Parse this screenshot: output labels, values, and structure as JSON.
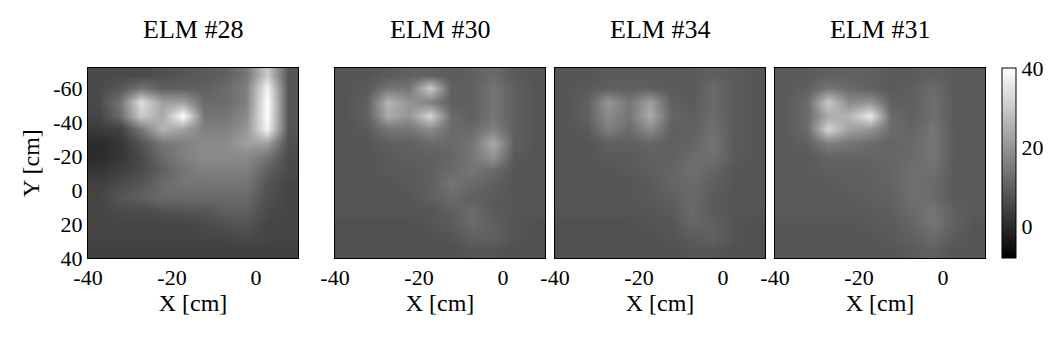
{
  "chart_data": [
    {
      "type": "heatmap",
      "title": "ELM #28",
      "xlabel": "X [cm]",
      "ylabel": "Y [cm]",
      "x": [
        -37.5,
        -32.5,
        -27.5,
        -22.5,
        -17.5,
        -12.5,
        -7.5,
        -2.5,
        2.5,
        7.5
      ],
      "y": [
        -68,
        -60,
        -52,
        -44,
        -36,
        -28,
        -20,
        -12,
        -4,
        4,
        12,
        20,
        28,
        36
      ],
      "z": [
        [
          6,
          6,
          6,
          7,
          8,
          9,
          10,
          14,
          30,
          8
        ],
        [
          6,
          8,
          14,
          10,
          10,
          10,
          12,
          16,
          38,
          8
        ],
        [
          6,
          14,
          34,
          22,
          22,
          12,
          12,
          16,
          40,
          8
        ],
        [
          5,
          12,
          30,
          24,
          40,
          14,
          14,
          18,
          40,
          8
        ],
        [
          3,
          4,
          14,
          26,
          22,
          16,
          16,
          20,
          38,
          8
        ],
        [
          0,
          2,
          8,
          14,
          16,
          18,
          18,
          22,
          22,
          7
        ],
        [
          0,
          2,
          6,
          12,
          16,
          18,
          18,
          18,
          14,
          6
        ],
        [
          2,
          4,
          6,
          10,
          14,
          16,
          16,
          16,
          10,
          6
        ],
        [
          4,
          6,
          8,
          12,
          14,
          14,
          14,
          14,
          8,
          5
        ],
        [
          5,
          8,
          10,
          12,
          12,
          12,
          12,
          12,
          7,
          5
        ],
        [
          5,
          6,
          6,
          7,
          8,
          8,
          10,
          10,
          6,
          5
        ],
        [
          5,
          5,
          5,
          5,
          5,
          6,
          7,
          8,
          5,
          5
        ],
        [
          5,
          5,
          5,
          5,
          5,
          5,
          5,
          6,
          5,
          5
        ],
        [
          4,
          4,
          4,
          4,
          4,
          4,
          4,
          4,
          4,
          4
        ]
      ],
      "xlim": [
        -40,
        10
      ],
      "ylim": [
        40,
        -72
      ],
      "xticks": [
        -40,
        -20,
        0
      ],
      "yticks": [
        -60,
        -40,
        -20,
        0,
        20,
        40
      ]
    },
    {
      "type": "heatmap",
      "title": "ELM #30",
      "xlabel": "X [cm]",
      "tick_labels": "x",
      "x": [
        -37.5,
        -32.5,
        -27.5,
        -22.5,
        -17.5,
        -12.5,
        -7.5,
        -2.5,
        2.5,
        7.5
      ],
      "y": [
        -68,
        -60,
        -52,
        -44,
        -36,
        -28,
        -20,
        -12,
        -4,
        4,
        12,
        20,
        28,
        36
      ],
      "z": [
        [
          8,
          8,
          9,
          10,
          10,
          9,
          10,
          12,
          9,
          8
        ],
        [
          8,
          9,
          14,
          14,
          30,
          10,
          10,
          14,
          10,
          8
        ],
        [
          8,
          10,
          26,
          20,
          16,
          10,
          10,
          14,
          10,
          8
        ],
        [
          8,
          10,
          24,
          20,
          32,
          12,
          10,
          14,
          10,
          8
        ],
        [
          8,
          9,
          14,
          14,
          18,
          12,
          12,
          16,
          10,
          8
        ],
        [
          8,
          8,
          10,
          10,
          12,
          12,
          14,
          24,
          10,
          8
        ],
        [
          8,
          8,
          9,
          10,
          10,
          11,
          14,
          20,
          9,
          8
        ],
        [
          8,
          8,
          9,
          9,
          10,
          12,
          14,
          12,
          8,
          8
        ],
        [
          8,
          8,
          8,
          9,
          10,
          14,
          12,
          10,
          8,
          8
        ],
        [
          8,
          8,
          8,
          8,
          10,
          12,
          10,
          9,
          8,
          8
        ],
        [
          8,
          8,
          8,
          8,
          8,
          10,
          12,
          9,
          8,
          8
        ],
        [
          7,
          7,
          7,
          7,
          8,
          9,
          12,
          10,
          8,
          7
        ],
        [
          7,
          7,
          7,
          7,
          7,
          8,
          10,
          10,
          8,
          7
        ],
        [
          7,
          7,
          7,
          7,
          7,
          7,
          8,
          8,
          7,
          7
        ]
      ],
      "xlim": [
        -40,
        10
      ],
      "ylim": [
        40,
        -72
      ],
      "xticks": [
        -40,
        -20,
        0
      ]
    },
    {
      "type": "heatmap",
      "title": "ELM #34",
      "xlabel": "X [cm]",
      "tick_labels": "x",
      "x": [
        -37.5,
        -32.5,
        -27.5,
        -22.5,
        -17.5,
        -12.5,
        -7.5,
        -2.5,
        2.5,
        7.5
      ],
      "y": [
        -68,
        -60,
        -52,
        -44,
        -36,
        -28,
        -20,
        -12,
        -4,
        4,
        12,
        20,
        28,
        36
      ],
      "z": [
        [
          8,
          8,
          9,
          9,
          9,
          9,
          9,
          10,
          9,
          8
        ],
        [
          8,
          9,
          10,
          10,
          10,
          9,
          9,
          12,
          9,
          8
        ],
        [
          8,
          10,
          20,
          14,
          22,
          10,
          9,
          12,
          9,
          8
        ],
        [
          8,
          10,
          18,
          14,
          24,
          11,
          10,
          12,
          9,
          8
        ],
        [
          8,
          9,
          16,
          12,
          18,
          10,
          10,
          13,
          9,
          8
        ],
        [
          8,
          8,
          10,
          10,
          11,
          10,
          11,
          14,
          9,
          8
        ],
        [
          8,
          8,
          9,
          9,
          10,
          10,
          12,
          13,
          9,
          8
        ],
        [
          8,
          8,
          8,
          9,
          10,
          11,
          13,
          11,
          8,
          8
        ],
        [
          8,
          8,
          8,
          8,
          9,
          11,
          12,
          10,
          8,
          8
        ],
        [
          8,
          8,
          8,
          8,
          9,
          10,
          12,
          9,
          8,
          8
        ],
        [
          8,
          8,
          8,
          8,
          8,
          9,
          12,
          9,
          8,
          8
        ],
        [
          7,
          7,
          7,
          7,
          8,
          8,
          11,
          10,
          8,
          7
        ],
        [
          7,
          7,
          7,
          7,
          7,
          8,
          9,
          10,
          8,
          7
        ],
        [
          7,
          7,
          7,
          7,
          7,
          7,
          8,
          8,
          7,
          7
        ]
      ],
      "xlim": [
        -40,
        10
      ],
      "ylim": [
        40,
        -72
      ],
      "xticks": [
        -40,
        -20,
        0
      ]
    },
    {
      "type": "heatmap",
      "title": "ELM #31",
      "xlabel": "X [cm]",
      "tick_labels": "x",
      "x": [
        -37.5,
        -32.5,
        -27.5,
        -22.5,
        -17.5,
        -12.5,
        -7.5,
        -2.5,
        2.5,
        7.5
      ],
      "y": [
        -68,
        -60,
        -52,
        -44,
        -36,
        -28,
        -20,
        -12,
        -4,
        4,
        12,
        20,
        28,
        36
      ],
      "z": [
        [
          9,
          9,
          10,
          10,
          10,
          9,
          9,
          10,
          9,
          9
        ],
        [
          9,
          10,
          14,
          12,
          10,
          9,
          10,
          12,
          9,
          9
        ],
        [
          9,
          12,
          30,
          18,
          20,
          10,
          10,
          13,
          9,
          9
        ],
        [
          9,
          12,
          24,
          26,
          36,
          12,
          10,
          13,
          9,
          9
        ],
        [
          9,
          12,
          32,
          22,
          20,
          12,
          11,
          14,
          9,
          9
        ],
        [
          9,
          10,
          16,
          14,
          12,
          11,
          12,
          14,
          9,
          9
        ],
        [
          9,
          9,
          11,
          11,
          11,
          11,
          12,
          14,
          9,
          9
        ],
        [
          9,
          9,
          10,
          10,
          10,
          11,
          13,
          13,
          9,
          9
        ],
        [
          9,
          9,
          9,
          10,
          10,
          11,
          13,
          12,
          9,
          9
        ],
        [
          9,
          9,
          9,
          9,
          10,
          10,
          13,
          12,
          9,
          9
        ],
        [
          9,
          9,
          9,
          9,
          9,
          10,
          12,
          14,
          10,
          9
        ],
        [
          8,
          8,
          8,
          8,
          9,
          9,
          11,
          14,
          10,
          8
        ],
        [
          8,
          8,
          8,
          8,
          8,
          9,
          10,
          12,
          9,
          8
        ],
        [
          8,
          8,
          8,
          8,
          8,
          8,
          9,
          10,
          8,
          8
        ]
      ],
      "xlim": [
        -40,
        10
      ],
      "ylim": [
        40,
        -72
      ],
      "xticks": [
        -40,
        -20,
        0
      ],
      "colorbar": {
        "range": [
          -8,
          40
        ],
        "ticks": [
          0,
          20,
          40
        ]
      }
    }
  ]
}
